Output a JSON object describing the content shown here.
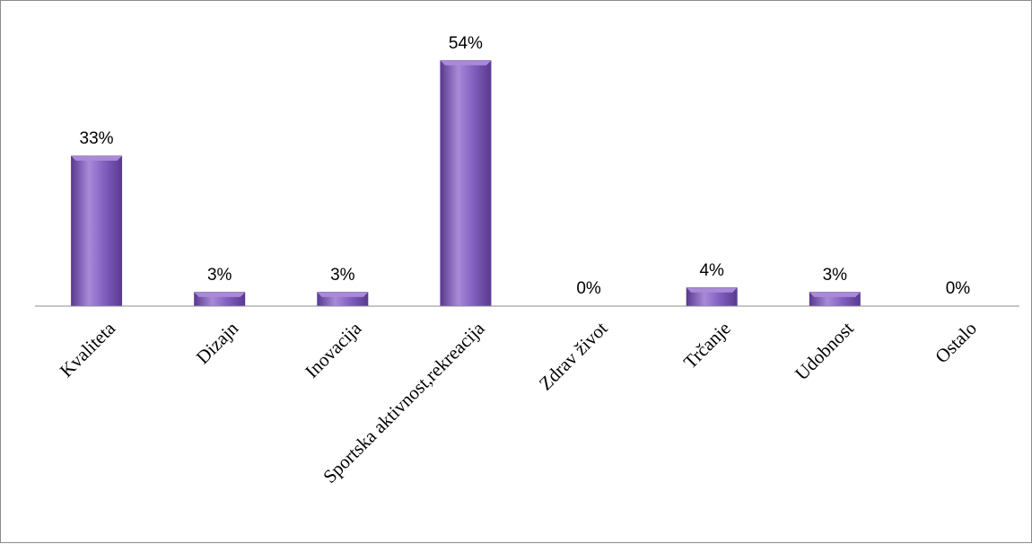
{
  "chart_data": {
    "type": "bar",
    "categories": [
      "Kvaliteta",
      "Dizajn",
      "Inovacija",
      "Sportska aktivnost,rekreacija",
      "Zdrav život",
      "Trčanje",
      "Udobnost",
      "Ostalo"
    ],
    "values": [
      33,
      3,
      3,
      54,
      0,
      4,
      3,
      0
    ],
    "data_labels": [
      "33%",
      "3%",
      "3%",
      "54%",
      "0%",
      "4%",
      "3%",
      "0%"
    ],
    "ylim": [
      0,
      60
    ],
    "grid": false,
    "legend": "none",
    "colors": {
      "bar_light": "#a88ad8",
      "bar_mid": "#8160c0",
      "bar_dark": "#5a3a90",
      "axis": "#8c8c8c"
    }
  }
}
